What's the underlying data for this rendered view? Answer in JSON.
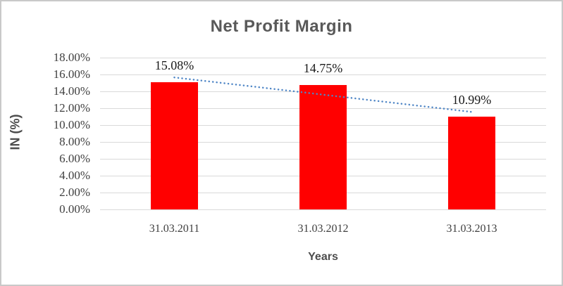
{
  "chart_data": {
    "type": "bar",
    "title": "Net Profit Margin",
    "xlabel": "Years",
    "ylabel": "IN (%)",
    "categories": [
      "31.03.2011",
      "31.03.2012",
      "31.03.2013"
    ],
    "series": [
      {
        "name": "Net Profit Margin",
        "values": [
          15.08,
          14.75,
          10.99
        ]
      }
    ],
    "data_labels": [
      "15.08%",
      "14.75%",
      "10.99%"
    ],
    "y_ticks": [
      {
        "value": 18,
        "label": "18.00%"
      },
      {
        "value": 16,
        "label": "16.00%"
      },
      {
        "value": 14,
        "label": "14.00%"
      },
      {
        "value": 12,
        "label": "12.00%"
      },
      {
        "value": 10,
        "label": "10.00%"
      },
      {
        "value": 8,
        "label": "8.00%"
      },
      {
        "value": 6,
        "label": "6.00%"
      },
      {
        "value": 4,
        "label": "4.00%"
      },
      {
        "value": 2,
        "label": "2.00%"
      },
      {
        "value": 0,
        "label": "0.00%"
      }
    ],
    "ylim": [
      0,
      18
    ],
    "grid": true,
    "legend": false,
    "trendline": "linear",
    "colors": {
      "bar": "#ff0000",
      "trendline": "#4f86c6",
      "gridline": "#d9d9d9",
      "title_text": "#595959",
      "axis_title_text": "#4d4d4d",
      "tick_text": "#404040",
      "data_label_text": "#1a1a1a",
      "border": "#c9c9c9"
    }
  }
}
